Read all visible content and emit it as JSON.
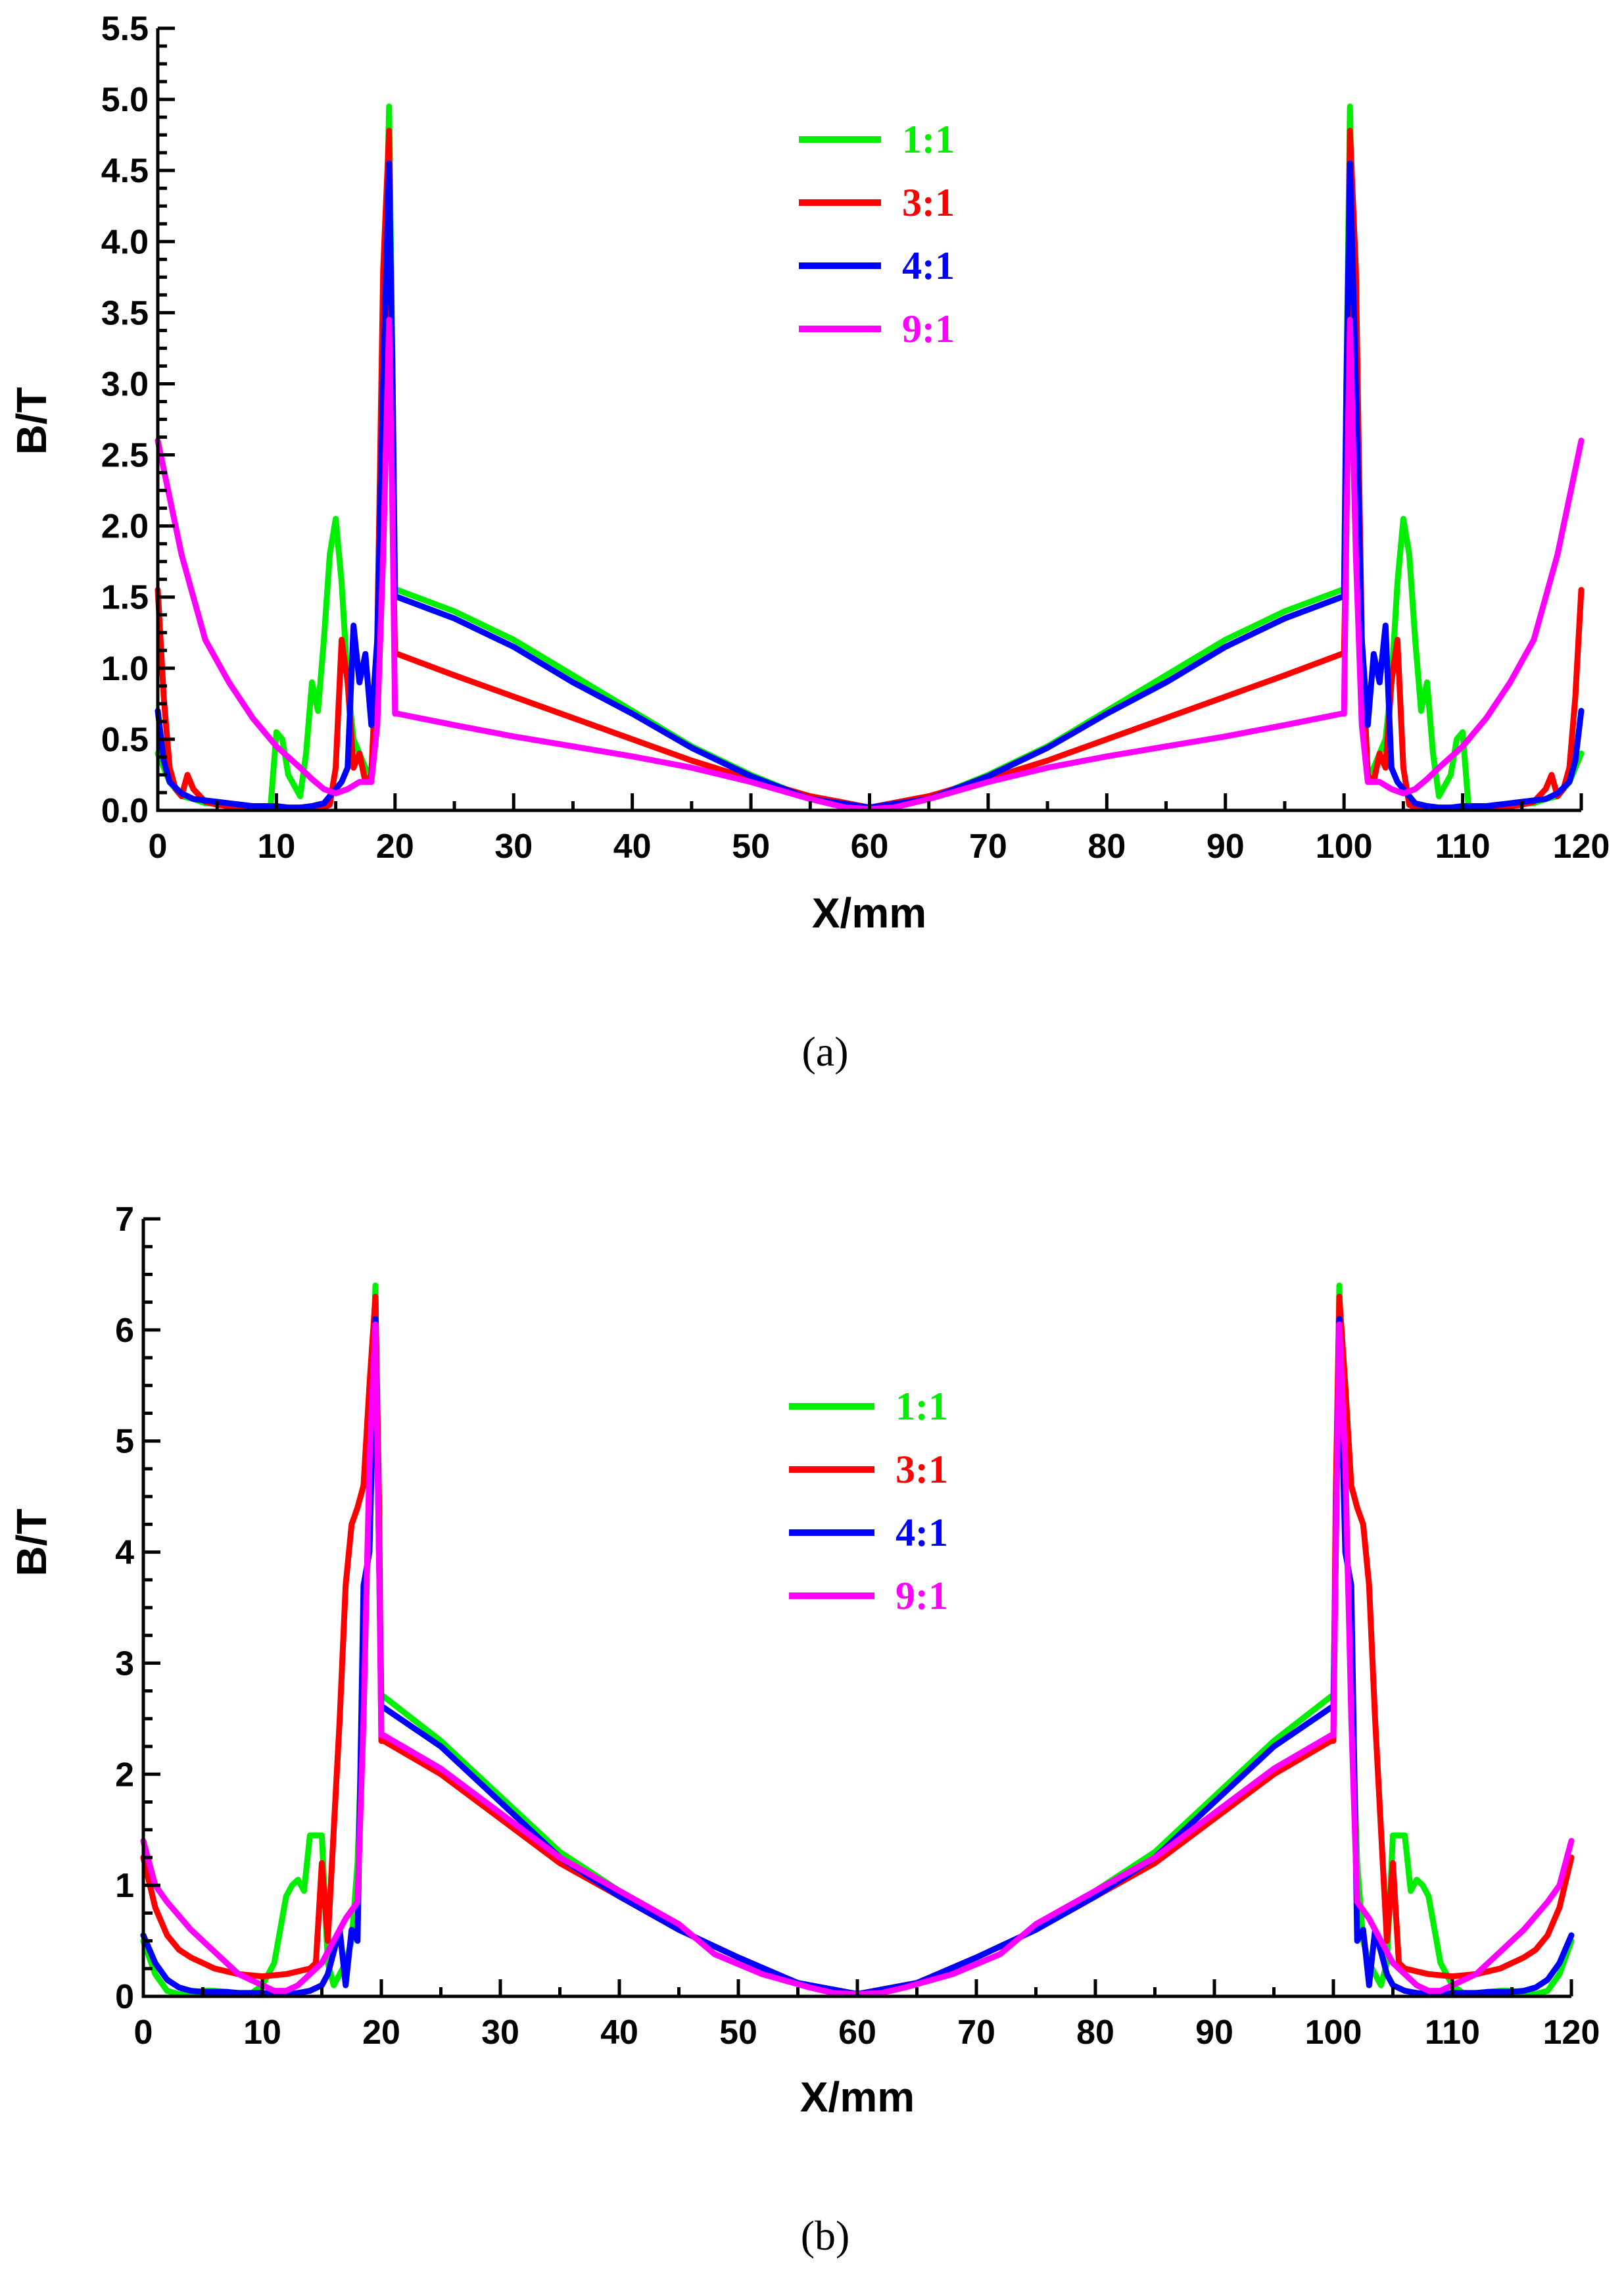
{
  "chart_data": [
    {
      "id": "a",
      "type": "line",
      "panel_label": "(a)",
      "xlabel": "X/mm",
      "ylabel": "B/T",
      "xlim": [
        0,
        120
      ],
      "ylim": [
        0,
        5.5
      ],
      "xticks": [
        "0",
        "10",
        "20",
        "30",
        "40",
        "50",
        "60",
        "70",
        "80",
        "90",
        "100",
        "110",
        "120"
      ],
      "yticks": [
        "0.0",
        "0.5",
        "1.0",
        "1.5",
        "2.0",
        "2.5",
        "3.0",
        "3.5",
        "4.0",
        "4.5",
        "5.0",
        "5.5"
      ],
      "legend_position": "top-center",
      "series": [
        {
          "name": "1:1",
          "color": "#00ee00",
          "x": [
            0,
            1,
            2,
            3,
            4,
            5,
            6,
            7,
            8,
            9,
            9.5,
            10,
            10.5,
            11,
            12,
            12.5,
            13,
            13.5,
            14,
            14.5,
            15,
            15.5,
            16,
            16.5,
            17,
            17.5,
            18,
            18.5,
            19,
            19.5,
            19.8,
            20,
            20.2,
            25,
            30,
            35,
            40,
            45,
            50,
            55,
            60
          ],
          "y": [
            0.4,
            0.2,
            0.1,
            0.08,
            0.05,
            0.05,
            0.03,
            0.03,
            0.03,
            0.03,
            0.02,
            0.55,
            0.5,
            0.25,
            0.1,
            0.4,
            0.9,
            0.7,
            1.2,
            1.8,
            2.05,
            1.6,
            0.9,
            0.5,
            0.4,
            0.3,
            0.25,
            0.8,
            3.0,
            4.95,
            3.0,
            1.55,
            1.55,
            1.4,
            1.2,
            0.95,
            0.7,
            0.45,
            0.25,
            0.08,
            0.02
          ]
        },
        {
          "name": "3:1",
          "color": "#ff0000",
          "x": [
            0,
            0.5,
            1,
            1.5,
            2,
            2.5,
            3,
            4,
            5,
            6,
            7,
            8,
            9,
            10,
            11,
            12,
            13,
            14,
            14.5,
            15,
            15.5,
            16,
            16.5,
            17,
            17.5,
            18,
            18.5,
            19,
            19.5,
            19.8,
            20,
            20.2,
            25,
            30,
            35,
            40,
            45,
            50,
            55,
            60
          ],
          "y": [
            1.55,
            0.8,
            0.3,
            0.15,
            0.1,
            0.25,
            0.15,
            0.06,
            0.04,
            0.03,
            0.02,
            0.02,
            0.02,
            0.02,
            0.02,
            0.02,
            0.02,
            0.02,
            0.04,
            0.3,
            1.2,
            0.9,
            0.3,
            0.4,
            0.2,
            0.25,
            1.2,
            3.8,
            4.78,
            2.0,
            1.1,
            1.1,
            0.95,
            0.8,
            0.65,
            0.5,
            0.35,
            0.22,
            0.1,
            0.02
          ]
        },
        {
          "name": "4:1",
          "color": "#0000ff",
          "x": [
            0,
            0.5,
            1,
            2,
            3,
            4,
            5,
            6,
            7,
            8,
            9,
            10,
            11,
            12,
            13,
            14,
            14.5,
            15,
            15.5,
            16,
            16.5,
            17,
            17.5,
            18,
            18.5,
            19,
            19.5,
            19.8,
            20,
            20.2,
            25,
            30,
            35,
            40,
            45,
            50,
            55,
            60
          ],
          "y": [
            0.7,
            0.35,
            0.2,
            0.12,
            0.08,
            0.07,
            0.06,
            0.05,
            0.04,
            0.03,
            0.03,
            0.03,
            0.02,
            0.02,
            0.03,
            0.05,
            0.1,
            0.15,
            0.2,
            0.3,
            1.3,
            0.9,
            1.1,
            0.6,
            1.2,
            3.0,
            4.55,
            3.0,
            1.5,
            1.5,
            1.35,
            1.15,
            0.9,
            0.68,
            0.44,
            0.24,
            0.08,
            0.02
          ]
        },
        {
          "name": "9:1",
          "color": "#ff00ff",
          "x": [
            0,
            1,
            2,
            3,
            4,
            6,
            8,
            10,
            12,
            13,
            14,
            15,
            16,
            17,
            18,
            18.5,
            19,
            19.5,
            19.8,
            20,
            20.2,
            25,
            30,
            35,
            40,
            45,
            50,
            55,
            58,
            60
          ],
          "y": [
            2.6,
            2.2,
            1.8,
            1.5,
            1.2,
            0.9,
            0.65,
            0.45,
            0.3,
            0.22,
            0.15,
            0.12,
            0.15,
            0.2,
            0.2,
            0.6,
            1.8,
            3.45,
            2.0,
            0.68,
            0.68,
            0.6,
            0.52,
            0.45,
            0.38,
            0.3,
            0.2,
            0.08,
            0.02,
            0.01
          ]
        }
      ],
      "legend": [
        {
          "label": "1:1",
          "color": "#00ee00"
        },
        {
          "label": "3:1",
          "color": "#ff0000"
        },
        {
          "label": "4:1",
          "color": "#0000ff"
        },
        {
          "label": "9:1",
          "color": "#ff00ff"
        }
      ]
    },
    {
      "id": "b",
      "type": "line",
      "panel_label": "(b)",
      "xlabel": "X/mm",
      "ylabel": "B/T",
      "xlim": [
        0,
        120
      ],
      "ylim": [
        0,
        7
      ],
      "xticks": [
        "0",
        "10",
        "20",
        "30",
        "40",
        "50",
        "60",
        "70",
        "80",
        "90",
        "100",
        "110",
        "120"
      ],
      "yticks": [
        "0",
        "1",
        "2",
        "3",
        "4",
        "5",
        "6",
        "7"
      ],
      "legend_position": "top-center",
      "series": [
        {
          "name": "1:1",
          "color": "#00ee00",
          "x": [
            0,
            1,
            2,
            3,
            4,
            5,
            6,
            7,
            8,
            9,
            10,
            11,
            12,
            12.5,
            13,
            13.5,
            14,
            14.5,
            15,
            15.5,
            16,
            16.5,
            17,
            17.5,
            18,
            18.5,
            19,
            19.5,
            19.8,
            20,
            20.2,
            25,
            30,
            35,
            40,
            45,
            50,
            55,
            60
          ],
          "y": [
            0.5,
            0.2,
            0.05,
            0.02,
            0.03,
            0.05,
            0.05,
            0.04,
            0.02,
            0.02,
            0.1,
            0.3,
            0.9,
            1.0,
            1.05,
            0.95,
            1.45,
            1.45,
            1.45,
            0.3,
            0.1,
            0.2,
            0.3,
            0.5,
            1.2,
            2.8,
            4.5,
            6.4,
            4.0,
            2.7,
            2.7,
            2.3,
            1.8,
            1.3,
            0.95,
            0.6,
            0.35,
            0.12,
            0.02
          ]
        },
        {
          "name": "3:1",
          "color": "#ff0000",
          "x": [
            0,
            1,
            2,
            3,
            4,
            5,
            6,
            8,
            10,
            12,
            14,
            14.5,
            15,
            15.5,
            16,
            16.5,
            17,
            17.5,
            18,
            18.5,
            19,
            19.5,
            19.8,
            20,
            20.2,
            25,
            30,
            35,
            40,
            45,
            50,
            55,
            60
          ],
          "y": [
            1.25,
            0.8,
            0.55,
            0.42,
            0.35,
            0.3,
            0.25,
            0.2,
            0.18,
            0.2,
            0.25,
            0.3,
            1.2,
            0.5,
            1.5,
            2.5,
            3.7,
            4.25,
            4.4,
            4.6,
            5.5,
            6.3,
            4.5,
            2.3,
            2.3,
            2.0,
            1.6,
            1.2,
            0.9,
            0.6,
            0.35,
            0.12,
            0.02
          ]
        },
        {
          "name": "4:1",
          "color": "#0000ff",
          "x": [
            0,
            1,
            2,
            3,
            4,
            5,
            6,
            7,
            8,
            9,
            10,
            11,
            12,
            13,
            14,
            15,
            15.5,
            16,
            16.5,
            17,
            17.5,
            18,
            18.5,
            19,
            19.5,
            19.8,
            20,
            20.2,
            25,
            30,
            35,
            40,
            45,
            50,
            55,
            60
          ],
          "y": [
            0.55,
            0.3,
            0.15,
            0.08,
            0.05,
            0.04,
            0.04,
            0.04,
            0.03,
            0.03,
            0.03,
            0.02,
            0.02,
            0.03,
            0.05,
            0.1,
            0.2,
            0.4,
            0.6,
            0.1,
            0.6,
            0.5,
            3.7,
            4.0,
            6.1,
            4.0,
            2.6,
            2.6,
            2.25,
            1.75,
            1.25,
            0.9,
            0.6,
            0.35,
            0.12,
            0.02
          ]
        },
        {
          "name": "9:1",
          "color": "#ff00ff",
          "x": [
            0,
            1,
            2,
            4,
            6,
            8,
            10,
            11,
            12,
            13,
            14,
            15,
            16,
            17,
            18,
            18.5,
            19,
            19.5,
            19.8,
            20,
            20.2,
            25,
            30,
            35,
            40,
            45,
            48,
            52,
            56,
            58,
            60
          ],
          "y": [
            1.4,
            1.0,
            0.85,
            0.6,
            0.4,
            0.2,
            0.1,
            0.05,
            0.05,
            0.1,
            0.2,
            0.3,
            0.5,
            0.7,
            0.85,
            2.5,
            4.8,
            6.05,
            4.0,
            2.35,
            2.35,
            2.05,
            1.65,
            1.25,
            0.95,
            0.65,
            0.38,
            0.2,
            0.08,
            0.03,
            0.02
          ]
        }
      ],
      "legend": [
        {
          "label": "1:1",
          "color": "#00ee00"
        },
        {
          "label": "3:1",
          "color": "#ff0000"
        },
        {
          "label": "4:1",
          "color": "#0000ff"
        },
        {
          "label": "9:1",
          "color": "#ff00ff"
        }
      ]
    }
  ]
}
